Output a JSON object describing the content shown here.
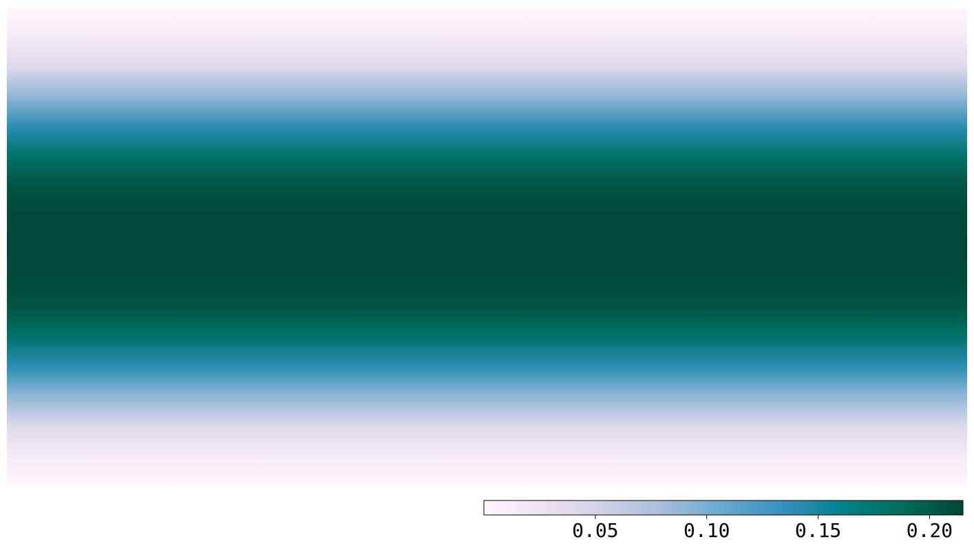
{
  "chart_data": {
    "type": "heatmap",
    "colormap": "PuBuGn",
    "colormap_stops": [
      "#fff7fb",
      "#ece2f0",
      "#d0d1e6",
      "#a6bddb",
      "#67a9cf",
      "#3690c0",
      "#02818a",
      "#016c59",
      "#014636"
    ],
    "value_range": [
      0.0,
      0.215
    ],
    "profile": "vertical gaussian bands, uniform along x",
    "row_values": [
      0.0,
      0.015,
      0.04,
      0.09,
      0.14,
      0.18,
      0.205,
      0.213,
      0.215,
      0.213,
      0.205,
      0.18,
      0.14,
      0.09,
      0.04,
      0.015,
      0.0
    ],
    "colorbar": {
      "orientation": "horizontal",
      "ticks": [
        0.05,
        0.1,
        0.15,
        0.2
      ],
      "tick_labels": [
        "0.05",
        "0.10",
        "0.15",
        "0.20"
      ]
    },
    "title": "",
    "xlabel": "",
    "ylabel": ""
  }
}
